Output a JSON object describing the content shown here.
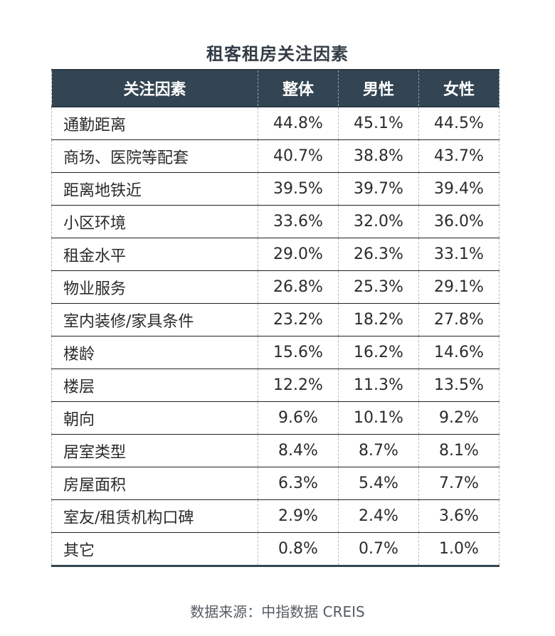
{
  "title": "租客租房关注因素",
  "source": "数据来源：中指数据 CREIS",
  "chart_data": {
    "type": "table",
    "title": "租客租房关注因素",
    "columns": [
      "关注因素",
      "整体",
      "男性",
      "女性"
    ],
    "rows": [
      [
        "通勤距离",
        "44.8%",
        "45.1%",
        "44.5%"
      ],
      [
        "商场、医院等配套",
        "40.7%",
        "38.8%",
        "43.7%"
      ],
      [
        "距离地铁近",
        "39.5%",
        "39.7%",
        "39.4%"
      ],
      [
        "小区环境",
        "33.6%",
        "32.0%",
        "36.0%"
      ],
      [
        "租金水平",
        "29.0%",
        "26.3%",
        "33.1%"
      ],
      [
        "物业服务",
        "26.8%",
        "25.3%",
        "29.1%"
      ],
      [
        "室内装修/家具条件",
        "23.2%",
        "18.2%",
        "27.8%"
      ],
      [
        "楼龄",
        "15.6%",
        "16.2%",
        "14.6%"
      ],
      [
        "楼层",
        "12.2%",
        "11.3%",
        "13.5%"
      ],
      [
        "朝向",
        "9.6%",
        "10.1%",
        "9.2%"
      ],
      [
        "居室类型",
        "8.4%",
        "8.7%",
        "8.1%"
      ],
      [
        "房屋面积",
        "6.3%",
        "5.4%",
        "7.7%"
      ],
      [
        "室友/租赁机构口碑",
        "2.9%",
        "2.4%",
        "3.6%"
      ],
      [
        "其它",
        "0.8%",
        "0.7%",
        "1.0%"
      ]
    ],
    "colors": {
      "header_bg": "#334552",
      "header_text": "#ffffff"
    }
  }
}
